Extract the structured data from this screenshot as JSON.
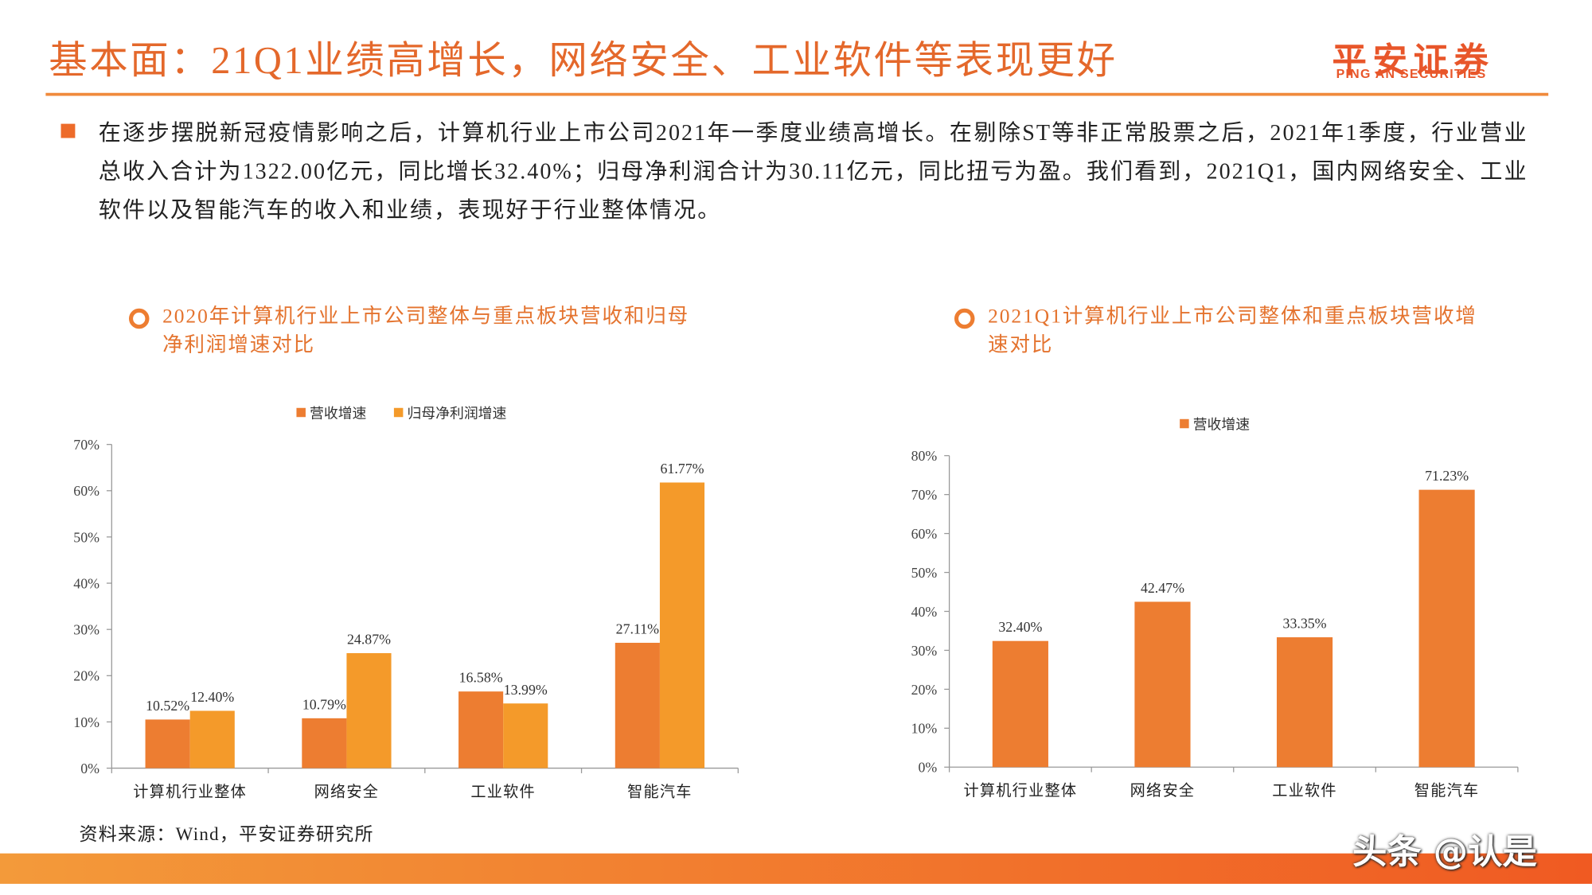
{
  "header": {
    "title": "基本面：21Q1业绩高增长，网络安全、工业软件等表现更好",
    "logo": "平安证券",
    "logo_sub": "PING AN SECURITIES"
  },
  "summary": "在逐步摆脱新冠疫情影响之后，计算机行业上市公司2021年一季度业绩高增长。在剔除ST等非正常股票之后，2021年1季度，行业营业总收入合计为1322.00亿元，同比增长32.40%；归母净利润合计为30.11亿元，同比扭亏为盈。我们看到，2021Q1，国内网络安全、工业软件以及智能汽车的收入和业绩，表现好于行业整体情况。",
  "chart_data": [
    {
      "type": "bar",
      "title": "2020年计算机行业上市公司整体与重点板块营收和归母净利润增速对比",
      "categories": [
        "计算机行业整体",
        "网络安全",
        "工业软件",
        "智能汽车"
      ],
      "series": [
        {
          "name": "营收增速",
          "color": "#ED7D31",
          "values": [
            10.52,
            10.79,
            16.58,
            27.11
          ],
          "value_labels": [
            "10.52%",
            "10.79%",
            "16.58%",
            "27.11%"
          ]
        },
        {
          "name": "归母净利润增速",
          "color": "#F49A2A",
          "values": [
            12.4,
            24.87,
            13.99,
            61.77
          ],
          "value_labels": [
            "12.40%",
            "24.87%",
            "13.99%",
            "61.77%"
          ]
        }
      ],
      "ylim": [
        0,
        70
      ],
      "yticks": [
        {
          "value": 0,
          "label": "0%"
        },
        {
          "value": 10,
          "label": "10%"
        },
        {
          "value": 20,
          "label": "20%"
        },
        {
          "value": 30,
          "label": "30%"
        },
        {
          "value": 40,
          "label": "40%"
        },
        {
          "value": 50,
          "label": "50%"
        },
        {
          "value": 60,
          "label": "60%"
        },
        {
          "value": 70,
          "label": "70%"
        }
      ],
      "legend": "top",
      "grid": false
    },
    {
      "type": "bar",
      "title": "2021Q1计算机行业上市公司整体和重点板块营收增速对比",
      "categories": [
        "计算机行业整体",
        "网络安全",
        "工业软件",
        "智能汽车"
      ],
      "series": [
        {
          "name": "营收增速",
          "color": "#ED7D31",
          "values": [
            32.4,
            42.47,
            33.35,
            71.23
          ],
          "value_labels": [
            "32.40%",
            "42.47%",
            "33.35%",
            "71.23%"
          ]
        }
      ],
      "ylim": [
        0,
        80
      ],
      "yticks": [
        {
          "value": 0,
          "label": "0%"
        },
        {
          "value": 10,
          "label": "10%"
        },
        {
          "value": 20,
          "label": "20%"
        },
        {
          "value": 30,
          "label": "30%"
        },
        {
          "value": 40,
          "label": "40%"
        },
        {
          "value": 50,
          "label": "50%"
        },
        {
          "value": 60,
          "label": "60%"
        },
        {
          "value": 70,
          "label": "70%"
        },
        {
          "value": 80,
          "label": "80%"
        }
      ],
      "legend": "top",
      "grid": false
    }
  ],
  "source": "资料来源：Wind，平安证券研究所",
  "watermark": "头条 @认是"
}
